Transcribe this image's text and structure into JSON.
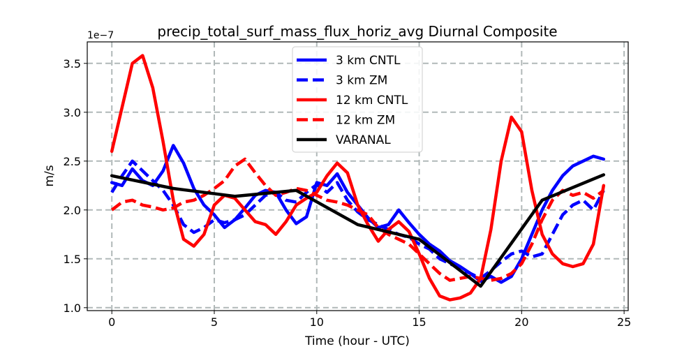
{
  "chart_data": {
    "type": "line",
    "title": "precip_total_surf_mass_flux_horiz_avg Diurnal Composite",
    "xlabel": "Time (hour - UTC)",
    "ylabel": "m/s",
    "y_offset_label": "1e−7",
    "xlim": [
      -1.2,
      25.2
    ],
    "ylim": [
      0.97,
      3.72
    ],
    "xticks": [
      0,
      5,
      10,
      15,
      20,
      25
    ],
    "xtick_labels": [
      "0",
      "5",
      "10",
      "15",
      "20",
      "25"
    ],
    "yticks": [
      1.0,
      1.5,
      2.0,
      2.5,
      3.0,
      3.5
    ],
    "ytick_labels": [
      "1.0",
      "1.5",
      "2.0",
      "2.5",
      "3.0",
      "3.5"
    ],
    "grid": true,
    "legend_position": "upper-center",
    "series": [
      {
        "name": "3 km CNTL",
        "color": "#0000ff",
        "style": "solid",
        "x": [
          0,
          0.5,
          1,
          1.5,
          2,
          2.5,
          3,
          3.5,
          4,
          4.5,
          5,
          5.5,
          6,
          6.5,
          7,
          7.5,
          8,
          8.5,
          9,
          9.5,
          10,
          10.5,
          11,
          11.5,
          12,
          12.5,
          13,
          13.5,
          14,
          14.5,
          15,
          15.5,
          16,
          16.5,
          17,
          17.5,
          18,
          18.5,
          19,
          19.5,
          20,
          20.5,
          21,
          21.5,
          22,
          22.5,
          23,
          23.5,
          24
        ],
        "y": [
          2.28,
          2.25,
          2.42,
          2.3,
          2.25,
          2.4,
          2.66,
          2.48,
          2.22,
          2.05,
          1.95,
          1.82,
          1.9,
          2.02,
          2.15,
          2.2,
          2.18,
          2.0,
          1.86,
          1.93,
          2.28,
          2.25,
          2.37,
          2.18,
          2.05,
          1.92,
          1.82,
          1.85,
          2.0,
          1.87,
          1.75,
          1.65,
          1.58,
          1.48,
          1.42,
          1.35,
          1.27,
          1.32,
          1.26,
          1.32,
          1.5,
          1.75,
          2.0,
          2.2,
          2.35,
          2.45,
          2.5,
          2.55,
          2.52
        ]
      },
      {
        "name": "3 km ZM",
        "color": "#0000ff",
        "style": "dashed",
        "x": [
          0,
          0.5,
          1,
          1.5,
          2,
          2.5,
          3,
          3.5,
          4,
          4.5,
          5,
          5.5,
          6,
          6.5,
          7,
          7.5,
          8,
          8.5,
          9,
          9.5,
          10,
          10.5,
          11,
          11.5,
          12,
          12.5,
          13,
          13.5,
          14,
          14.5,
          15,
          15.5,
          16,
          16.5,
          17,
          17.5,
          18,
          18.5,
          19,
          19.5,
          20,
          20.5,
          21,
          21.5,
          22,
          22.5,
          23,
          23.5,
          24
        ],
        "y": [
          2.18,
          2.35,
          2.5,
          2.4,
          2.3,
          2.2,
          2.05,
          1.85,
          1.77,
          1.82,
          1.9,
          1.87,
          1.9,
          1.95,
          2.05,
          2.15,
          2.18,
          2.1,
          2.08,
          2.18,
          2.26,
          2.18,
          2.28,
          2.1,
          1.98,
          1.9,
          1.85,
          1.8,
          1.75,
          1.72,
          1.65,
          1.6,
          1.5,
          1.45,
          1.4,
          1.35,
          1.3,
          1.38,
          1.47,
          1.55,
          1.58,
          1.52,
          1.55,
          1.75,
          1.95,
          2.05,
          2.1,
          2.0,
          2.2
        ]
      },
      {
        "name": "12 km CNTL",
        "color": "#ff0000",
        "style": "solid",
        "x": [
          0,
          0.5,
          1,
          1.5,
          2,
          2.5,
          3,
          3.5,
          4,
          4.5,
          5,
          5.5,
          6,
          6.5,
          7,
          7.5,
          8,
          8.5,
          9,
          9.5,
          10,
          10.5,
          11,
          11.5,
          12,
          12.5,
          13,
          13.5,
          14,
          14.5,
          15,
          15.5,
          16,
          16.5,
          17,
          17.5,
          18,
          18.5,
          19,
          19.5,
          20,
          20.5,
          21,
          21.5,
          22,
          22.5,
          23,
          23.5,
          24
        ],
        "y": [
          2.6,
          3.05,
          3.5,
          3.58,
          3.25,
          2.7,
          2.1,
          1.7,
          1.63,
          1.75,
          2.05,
          2.15,
          2.12,
          2.0,
          1.88,
          1.85,
          1.75,
          1.88,
          2.05,
          2.12,
          2.18,
          2.35,
          2.48,
          2.38,
          2.05,
          1.85,
          1.68,
          1.8,
          1.88,
          1.78,
          1.55,
          1.3,
          1.12,
          1.08,
          1.1,
          1.15,
          1.3,
          1.8,
          2.5,
          2.95,
          2.8,
          2.2,
          1.75,
          1.55,
          1.45,
          1.42,
          1.45,
          1.65,
          2.25
        ]
      },
      {
        "name": "12 km ZM",
        "color": "#ff0000",
        "style": "dashed",
        "x": [
          0,
          0.5,
          1,
          1.5,
          2,
          2.5,
          3,
          3.5,
          4,
          4.5,
          5,
          5.5,
          6,
          6.5,
          7,
          7.5,
          8,
          8.5,
          9,
          9.5,
          10,
          10.5,
          11,
          11.5,
          12,
          12.5,
          13,
          13.5,
          14,
          14.5,
          15,
          15.5,
          16,
          16.5,
          17,
          17.5,
          18,
          18.5,
          19,
          19.5,
          20,
          20.5,
          21,
          21.5,
          22,
          22.5,
          23,
          23.5,
          24
        ],
        "y": [
          2.0,
          2.08,
          2.1,
          2.05,
          2.03,
          2.0,
          2.02,
          2.08,
          2.1,
          2.15,
          2.22,
          2.3,
          2.45,
          2.52,
          2.38,
          2.25,
          2.15,
          2.18,
          2.22,
          2.2,
          2.15,
          2.1,
          2.08,
          2.05,
          2.0,
          1.95,
          1.82,
          1.75,
          1.7,
          1.65,
          1.55,
          1.45,
          1.35,
          1.28,
          1.3,
          1.32,
          1.3,
          1.28,
          1.3,
          1.35,
          1.45,
          1.65,
          1.9,
          2.1,
          2.2,
          2.15,
          2.18,
          2.12,
          2.2
        ]
      },
      {
        "name": "VARANAL",
        "color": "#000000",
        "style": "solid",
        "x": [
          0,
          3,
          6,
          9,
          12,
          15,
          18,
          21,
          24
        ],
        "y": [
          2.35,
          2.22,
          2.14,
          2.2,
          1.85,
          1.7,
          1.22,
          2.1,
          2.36
        ]
      }
    ]
  }
}
